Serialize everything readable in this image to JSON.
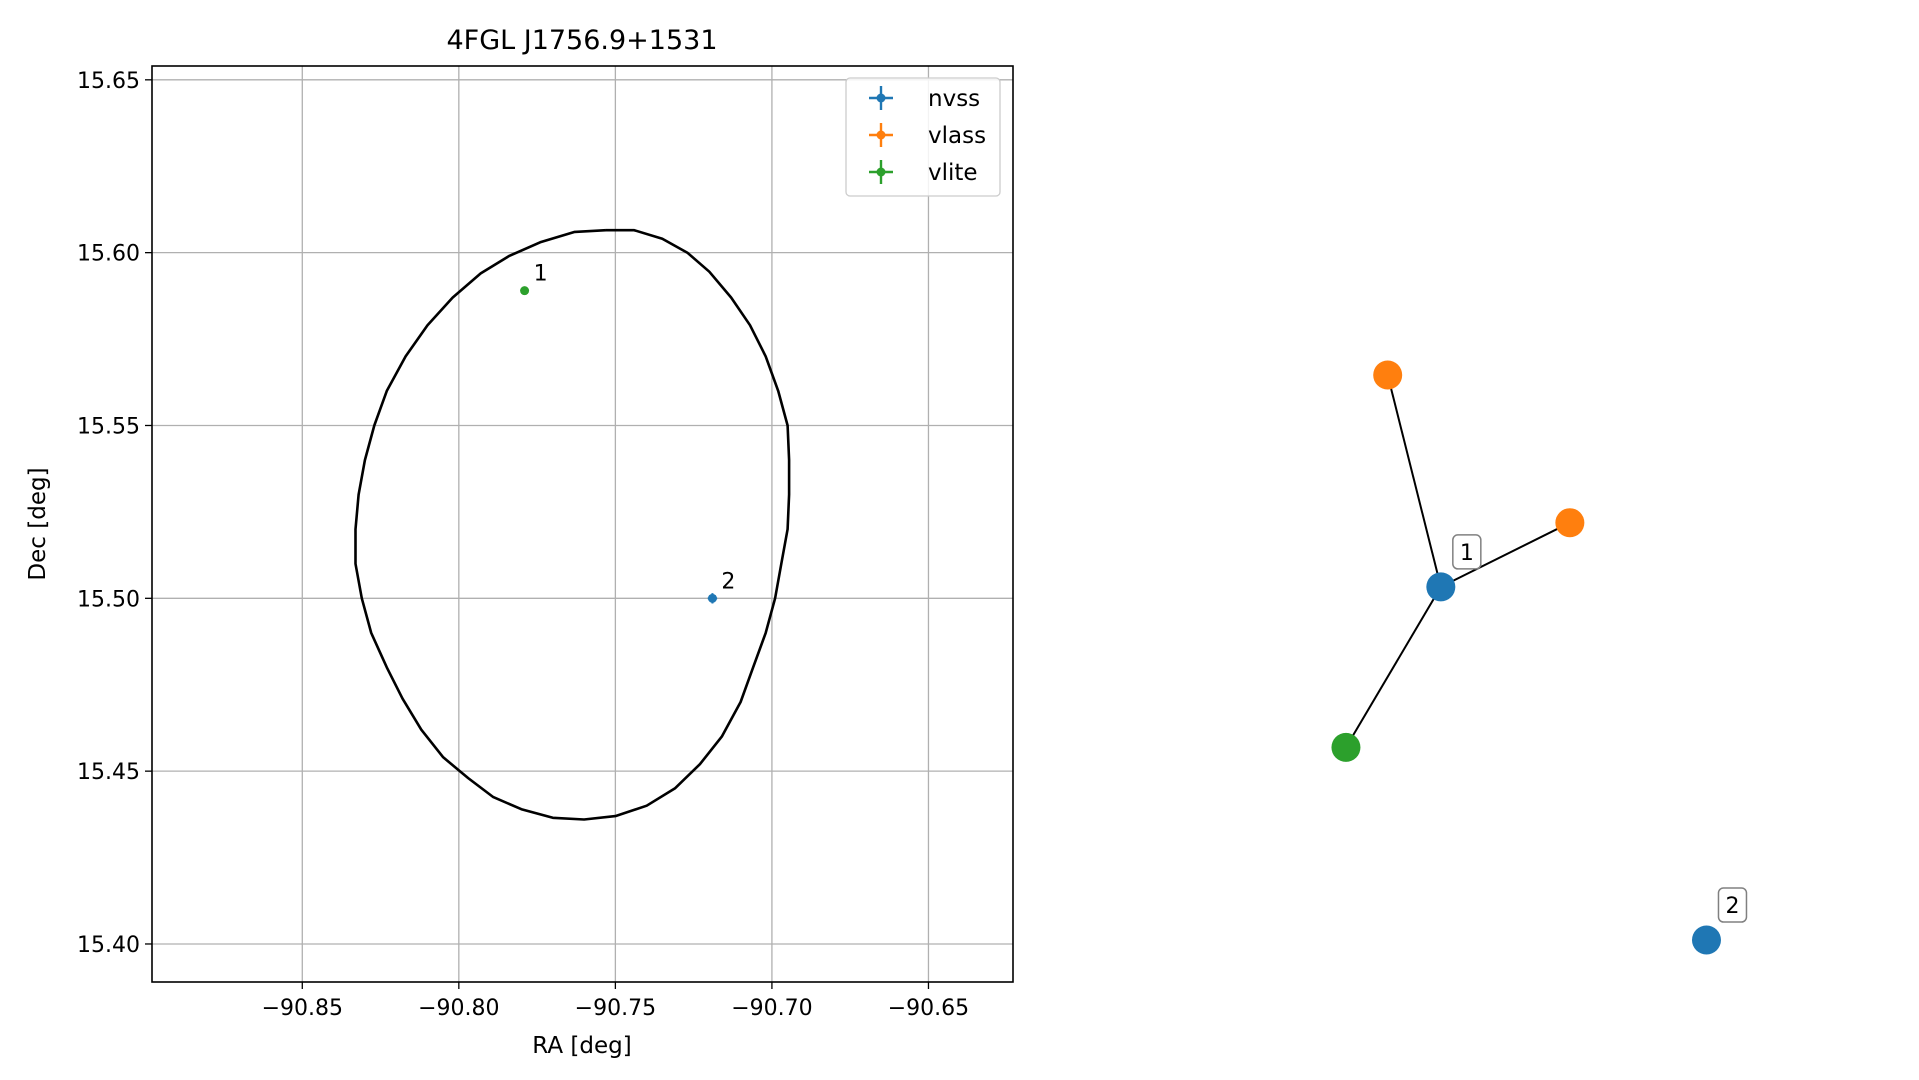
{
  "chart_data": [
    {
      "type": "scatter",
      "title": "4FGL J1756.9+1531",
      "xlabel": "RA [deg]",
      "ylabel": "Dec [deg]",
      "xlim": [
        -90.898,
        -90.623
      ],
      "ylim": [
        15.389,
        15.654
      ],
      "x_ticks": [
        -90.85,
        -90.8,
        -90.75,
        -90.7,
        -90.65
      ],
      "x_tick_labels": [
        "−90.85",
        "−90.80",
        "−90.75",
        "−90.70",
        "−90.65"
      ],
      "y_ticks": [
        15.4,
        15.45,
        15.5,
        15.55,
        15.6,
        15.65
      ],
      "y_tick_labels": [
        "15.40",
        "15.45",
        "15.50",
        "15.55",
        "15.60",
        "15.65"
      ],
      "grid": true,
      "legend_placement": "upper-right",
      "series": [
        {
          "name": "nvss",
          "color": "#1f77b4",
          "points": [
            {
              "x": -90.719,
              "y": 15.5,
              "xerr": 0.0015,
              "yerr": 0.0015
            }
          ]
        },
        {
          "name": "vlass",
          "color": "#ff7f0e",
          "points": []
        },
        {
          "name": "vlite",
          "color": "#2ca02c",
          "points": [
            {
              "x": -90.779,
              "y": 15.589,
              "xerr": 0.0008,
              "yerr": 0.0008
            }
          ]
        }
      ],
      "annotations": [
        {
          "text": "1",
          "x": -90.779,
          "y": 15.589
        },
        {
          "text": "2",
          "x": -90.719,
          "y": 15.5
        }
      ],
      "ellipse": {
        "color": "#000000",
        "points": [
          [
            -90.753,
            15.6065
          ],
          [
            -90.744,
            15.6065
          ],
          [
            -90.735,
            15.604
          ],
          [
            -90.727,
            15.6
          ],
          [
            -90.72,
            15.5945
          ],
          [
            -90.713,
            15.587
          ],
          [
            -90.707,
            15.579
          ],
          [
            -90.702,
            15.57
          ],
          [
            -90.698,
            15.56
          ],
          [
            -90.695,
            15.55
          ],
          [
            -90.6945,
            15.54
          ],
          [
            -90.6945,
            15.53
          ],
          [
            -90.695,
            15.52
          ],
          [
            -90.697,
            15.51
          ],
          [
            -90.699,
            15.5
          ],
          [
            -90.702,
            15.49
          ],
          [
            -90.706,
            15.48
          ],
          [
            -90.71,
            15.47
          ],
          [
            -90.716,
            15.46
          ],
          [
            -90.723,
            15.452
          ],
          [
            -90.731,
            15.445
          ],
          [
            -90.74,
            15.44
          ],
          [
            -90.75,
            15.437
          ],
          [
            -90.76,
            15.436
          ],
          [
            -90.77,
            15.4365
          ],
          [
            -90.78,
            15.439
          ],
          [
            -90.789,
            15.4425
          ],
          [
            -90.797,
            15.448
          ],
          [
            -90.805,
            15.454
          ],
          [
            -90.812,
            15.462
          ],
          [
            -90.818,
            15.471
          ],
          [
            -90.823,
            15.48
          ],
          [
            -90.828,
            15.49
          ],
          [
            -90.831,
            15.5
          ],
          [
            -90.833,
            15.51
          ],
          [
            -90.833,
            15.52
          ],
          [
            -90.832,
            15.53
          ],
          [
            -90.83,
            15.54
          ],
          [
            -90.827,
            15.55
          ],
          [
            -90.823,
            15.56
          ],
          [
            -90.817,
            15.57
          ],
          [
            -90.81,
            15.579
          ],
          [
            -90.802,
            15.587
          ],
          [
            -90.793,
            15.594
          ],
          [
            -90.784,
            15.599
          ],
          [
            -90.774,
            15.603
          ],
          [
            -90.763,
            15.606
          ],
          [
            -90.753,
            15.6065
          ]
        ]
      }
    },
    {
      "type": "network",
      "nodes": [
        {
          "id": "a",
          "color": "#1f77b4",
          "x": 0.37,
          "y": 0.55,
          "label": "1"
        },
        {
          "id": "b",
          "color": "#ff7f0e",
          "x": 0.3,
          "y": 0.88
        },
        {
          "id": "c",
          "color": "#ff7f0e",
          "x": 0.54,
          "y": 0.65
        },
        {
          "id": "d",
          "color": "#2ca02c",
          "x": 0.245,
          "y": 0.3
        },
        {
          "id": "e",
          "color": "#1f77b4",
          "x": 0.72,
          "y": 0.0,
          "label": "2"
        }
      ],
      "edges": [
        [
          "a",
          "b"
        ],
        [
          "a",
          "c"
        ],
        [
          "a",
          "d"
        ]
      ]
    }
  ]
}
